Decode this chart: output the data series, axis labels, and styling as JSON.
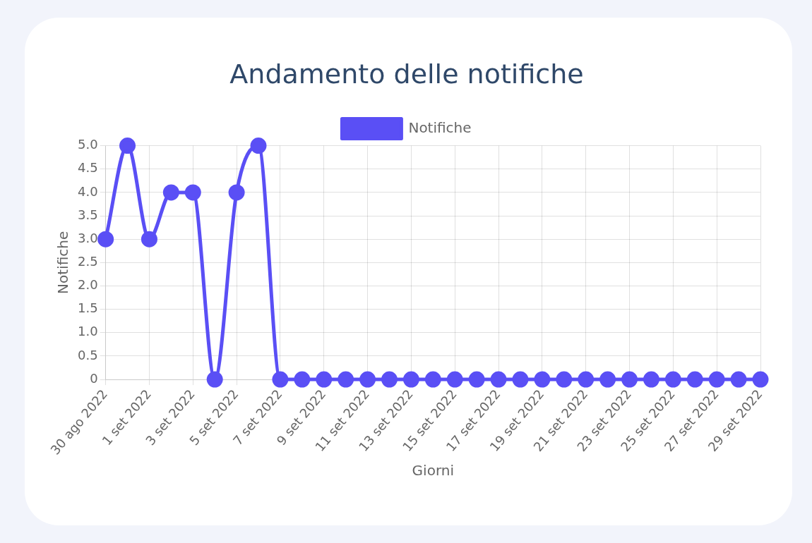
{
  "chart_data": {
    "type": "line",
    "title": "Andamento delle notifiche",
    "xlabel": "Giorni",
    "ylabel": "Notifiche",
    "categories": [
      "30 ago 2022",
      null,
      "1 set 2022",
      null,
      "3 set 2022",
      null,
      "5 set 2022",
      null,
      "7 set 2022",
      null,
      "9 set 2022",
      null,
      "11 set 2022",
      null,
      "13 set 2022",
      null,
      "15 set 2022",
      null,
      "17 set 2022",
      null,
      "19 set 2022",
      null,
      "21 set 2022",
      null,
      "23 set 2022",
      null,
      "25 set 2022",
      null,
      "27 set 2022",
      null,
      "29 set 2022"
    ],
    "series": [
      {
        "name": "Notifiche",
        "color": "#5a4ff5",
        "values": [
          3,
          5,
          3,
          4,
          4,
          0,
          4,
          5,
          0,
          0,
          0,
          0,
          0,
          0,
          0,
          0,
          0,
          0,
          0,
          0,
          0,
          0,
          0,
          0,
          0,
          0,
          0,
          0,
          0,
          0,
          0
        ]
      }
    ],
    "ylim": [
      0,
      5
    ],
    "yticks": [
      0,
      0.5,
      {
        "value": 1,
        "label": "1.0"
      },
      1.5,
      {
        "value": 2,
        "label": "2.0"
      },
      2.5,
      {
        "value": 3,
        "label": "3.0"
      },
      3.5,
      {
        "value": 4,
        "label": "4.0"
      },
      4.5,
      {
        "value": 5,
        "label": "5.0"
      }
    ],
    "grid": true,
    "legend": "top",
    "marker": "circle",
    "line_style": "solid"
  }
}
